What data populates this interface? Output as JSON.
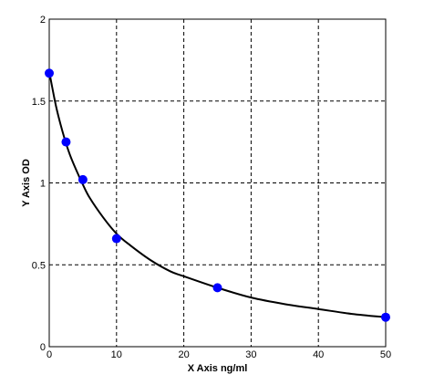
{
  "chart_data": {
    "type": "scatter",
    "title": "",
    "xlabel": "X  Axis ng/ml",
    "ylabel": "Y  Axis OD",
    "xlim": [
      0,
      50
    ],
    "ylim": [
      0,
      2
    ],
    "x_ticks": [
      "0",
      "10",
      "20",
      "30",
      "40",
      "50"
    ],
    "y_ticks": [
      "0",
      "0.5",
      "1",
      "1.5",
      "2"
    ],
    "grid": true,
    "series": [
      {
        "type": "scatter",
        "color": "#0000ff",
        "x": [
          0,
          2.5,
          5,
          10,
          25,
          50
        ],
        "y": [
          1.67,
          1.25,
          1.02,
          0.66,
          0.36,
          0.18
        ]
      },
      {
        "type": "line",
        "color": "#000000",
        "x": [
          0,
          1,
          2,
          3,
          4,
          5,
          6,
          8,
          10,
          12,
          15,
          18,
          20,
          25,
          30,
          35,
          40,
          45,
          50
        ],
        "y": [
          1.68,
          1.47,
          1.31,
          1.18,
          1.08,
          0.99,
          0.91,
          0.79,
          0.69,
          0.62,
          0.53,
          0.46,
          0.43,
          0.36,
          0.3,
          0.26,
          0.23,
          0.2,
          0.18
        ]
      }
    ]
  }
}
